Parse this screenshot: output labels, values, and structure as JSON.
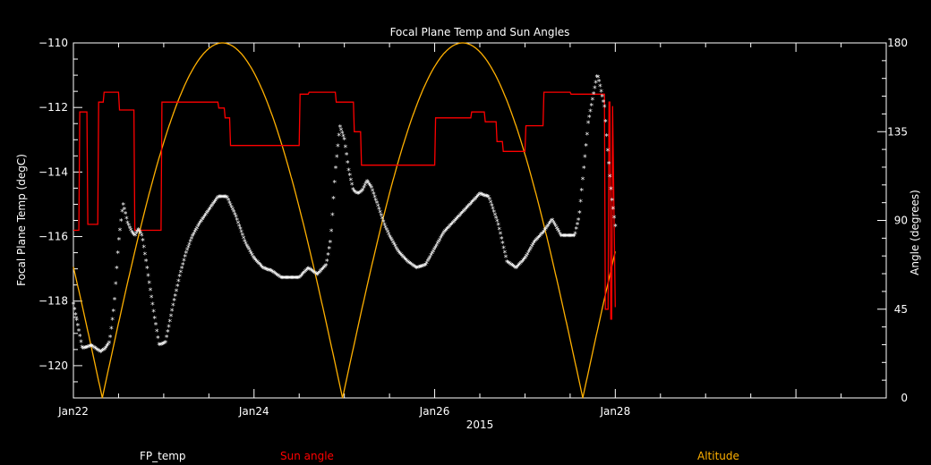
{
  "chart_data": {
    "type": "line",
    "title": "Focal Plane Temp and Sun Angles",
    "xlabel": "2015",
    "ylabel_left": "Focal Plane Temp (degC)",
    "ylabel_right": "Angle (degrees)",
    "x_unit": "days since Jan22 00:00",
    "xlim": [
      0,
      9
    ],
    "ylim_left": [
      -121,
      -110
    ],
    "ylim_right": [
      0,
      180
    ],
    "x_ticks": [
      {
        "x": 0,
        "label": "Jan22"
      },
      {
        "x": 2,
        "label": "Jan24"
      },
      {
        "x": 4,
        "label": "Jan26"
      },
      {
        "x": 6,
        "label": "Jan28"
      }
    ],
    "y_ticks_left": [
      -110,
      -112,
      -114,
      -116,
      -118,
      -120
    ],
    "y_ticks_right": [
      0,
      45,
      90,
      135,
      180
    ],
    "legend": {
      "fp": "FP_temp",
      "sun": "Sun angle",
      "alt": "Altitude"
    },
    "colors": {
      "fp": "#ffffff",
      "sun": "#ff0000",
      "alt": "#ffb000",
      "axes": "#ffffff",
      "bg": "#000000"
    },
    "series": [
      {
        "name": "FP_temp",
        "axis": "left",
        "marker": "star",
        "x": [
          0,
          0.05,
          0.1,
          0.2,
          0.3,
          0.35,
          0.4,
          0.45,
          0.5,
          0.55,
          0.6,
          0.65,
          0.68,
          0.72,
          0.76,
          0.8,
          0.88,
          0.95,
          1.02,
          1.1,
          1.18,
          1.25,
          1.32,
          1.4,
          1.5,
          1.6,
          1.7,
          1.8,
          1.9,
          2.0,
          2.1,
          2.2,
          2.3,
          2.4,
          2.5,
          2.6,
          2.7,
          2.8,
          2.85,
          2.9,
          2.95,
          3.0,
          3.05,
          3.1,
          3.15,
          3.2,
          3.25,
          3.3,
          3.35,
          3.4,
          3.45,
          3.5,
          3.6,
          3.7,
          3.8,
          3.9,
          4.0,
          4.1,
          4.2,
          4.3,
          4.4,
          4.5,
          4.6,
          4.7,
          4.8,
          4.9,
          5.0,
          5.1,
          5.2,
          5.3,
          5.4,
          5.5,
          5.55,
          5.6,
          5.7,
          5.8,
          5.82,
          5.88,
          5.92,
          5.96,
          6.0
        ],
        "values": [
          -118.1,
          -118.8,
          -119.5,
          -119.4,
          -119.6,
          -119.5,
          -119.3,
          -118.2,
          -116.2,
          -115.0,
          -115.6,
          -115.9,
          -116.0,
          -115.8,
          -116.0,
          -116.7,
          -118.2,
          -119.4,
          -119.3,
          -118.2,
          -117.2,
          -116.5,
          -116.0,
          -115.6,
          -115.2,
          -114.8,
          -114.8,
          -115.4,
          -116.2,
          -116.7,
          -117.0,
          -117.1,
          -117.3,
          -117.3,
          -117.3,
          -117.0,
          -117.2,
          -116.9,
          -116.1,
          -114.0,
          -112.6,
          -113.0,
          -114.0,
          -114.6,
          -114.7,
          -114.6,
          -114.3,
          -114.5,
          -114.9,
          -115.3,
          -115.7,
          -116.0,
          -116.5,
          -116.8,
          -117.0,
          -116.9,
          -116.4,
          -115.9,
          -115.6,
          -115.3,
          -115.0,
          -114.7,
          -114.8,
          -115.6,
          -116.8,
          -117.0,
          -116.7,
          -116.2,
          -115.9,
          -115.5,
          -116.0,
          -116.0,
          -116.0,
          -115.4,
          -112.5,
          -111.0,
          -111.2,
          -112.0,
          -113.5,
          -114.8,
          -115.7
        ]
      },
      {
        "name": "Sun angle",
        "axis": "right",
        "style": "step",
        "x": [
          0,
          0.06,
          0.07,
          0.15,
          0.16,
          0.23,
          0.24,
          0.27,
          0.28,
          0.33,
          0.34,
          0.5,
          0.51,
          0.67,
          0.68,
          0.78,
          0.79,
          0.97,
          0.98,
          1.02,
          1.03,
          1.6,
          1.61,
          1.67,
          1.68,
          1.73,
          1.74,
          2.5,
          2.51,
          2.6,
          2.61,
          2.9,
          2.91,
          3.1,
          3.11,
          3.18,
          3.19,
          3.4,
          3.41,
          3.45,
          3.46,
          4.0,
          4.01,
          4.4,
          4.41,
          4.55,
          4.56,
          4.68,
          4.69,
          4.75,
          4.76,
          5.0,
          5.01,
          5.2,
          5.21,
          5.5,
          5.51,
          5.88,
          5.89,
          5.92,
          5.93,
          5.94,
          5.95,
          5.96,
          5.97,
          6.0
        ],
        "values": [
          85,
          85,
          145,
          145,
          88,
          88,
          88,
          88,
          150,
          150,
          155,
          155,
          146,
          146,
          85,
          85,
          85,
          85,
          150,
          150,
          150,
          150,
          147,
          147,
          142,
          142,
          128,
          128,
          154,
          154,
          155,
          155,
          150,
          150,
          135,
          135,
          118,
          118,
          118,
          118,
          118,
          118,
          142,
          142,
          145,
          145,
          140,
          140,
          130,
          130,
          125,
          125,
          138,
          138,
          155,
          155,
          154,
          154,
          45,
          45,
          150,
          150,
          40,
          40,
          148,
          46
        ]
      },
      {
        "name": "Altitude",
        "axis": "right",
        "style": "line",
        "function": "180*|cos(pi*(x-1.65)/2.66)|",
        "peaks_x": [
          1.65,
          4.31
        ],
        "troughs_x": [
          0.32,
          2.98,
          5.64
        ],
        "peak": 180,
        "trough": 0
      }
    ]
  }
}
